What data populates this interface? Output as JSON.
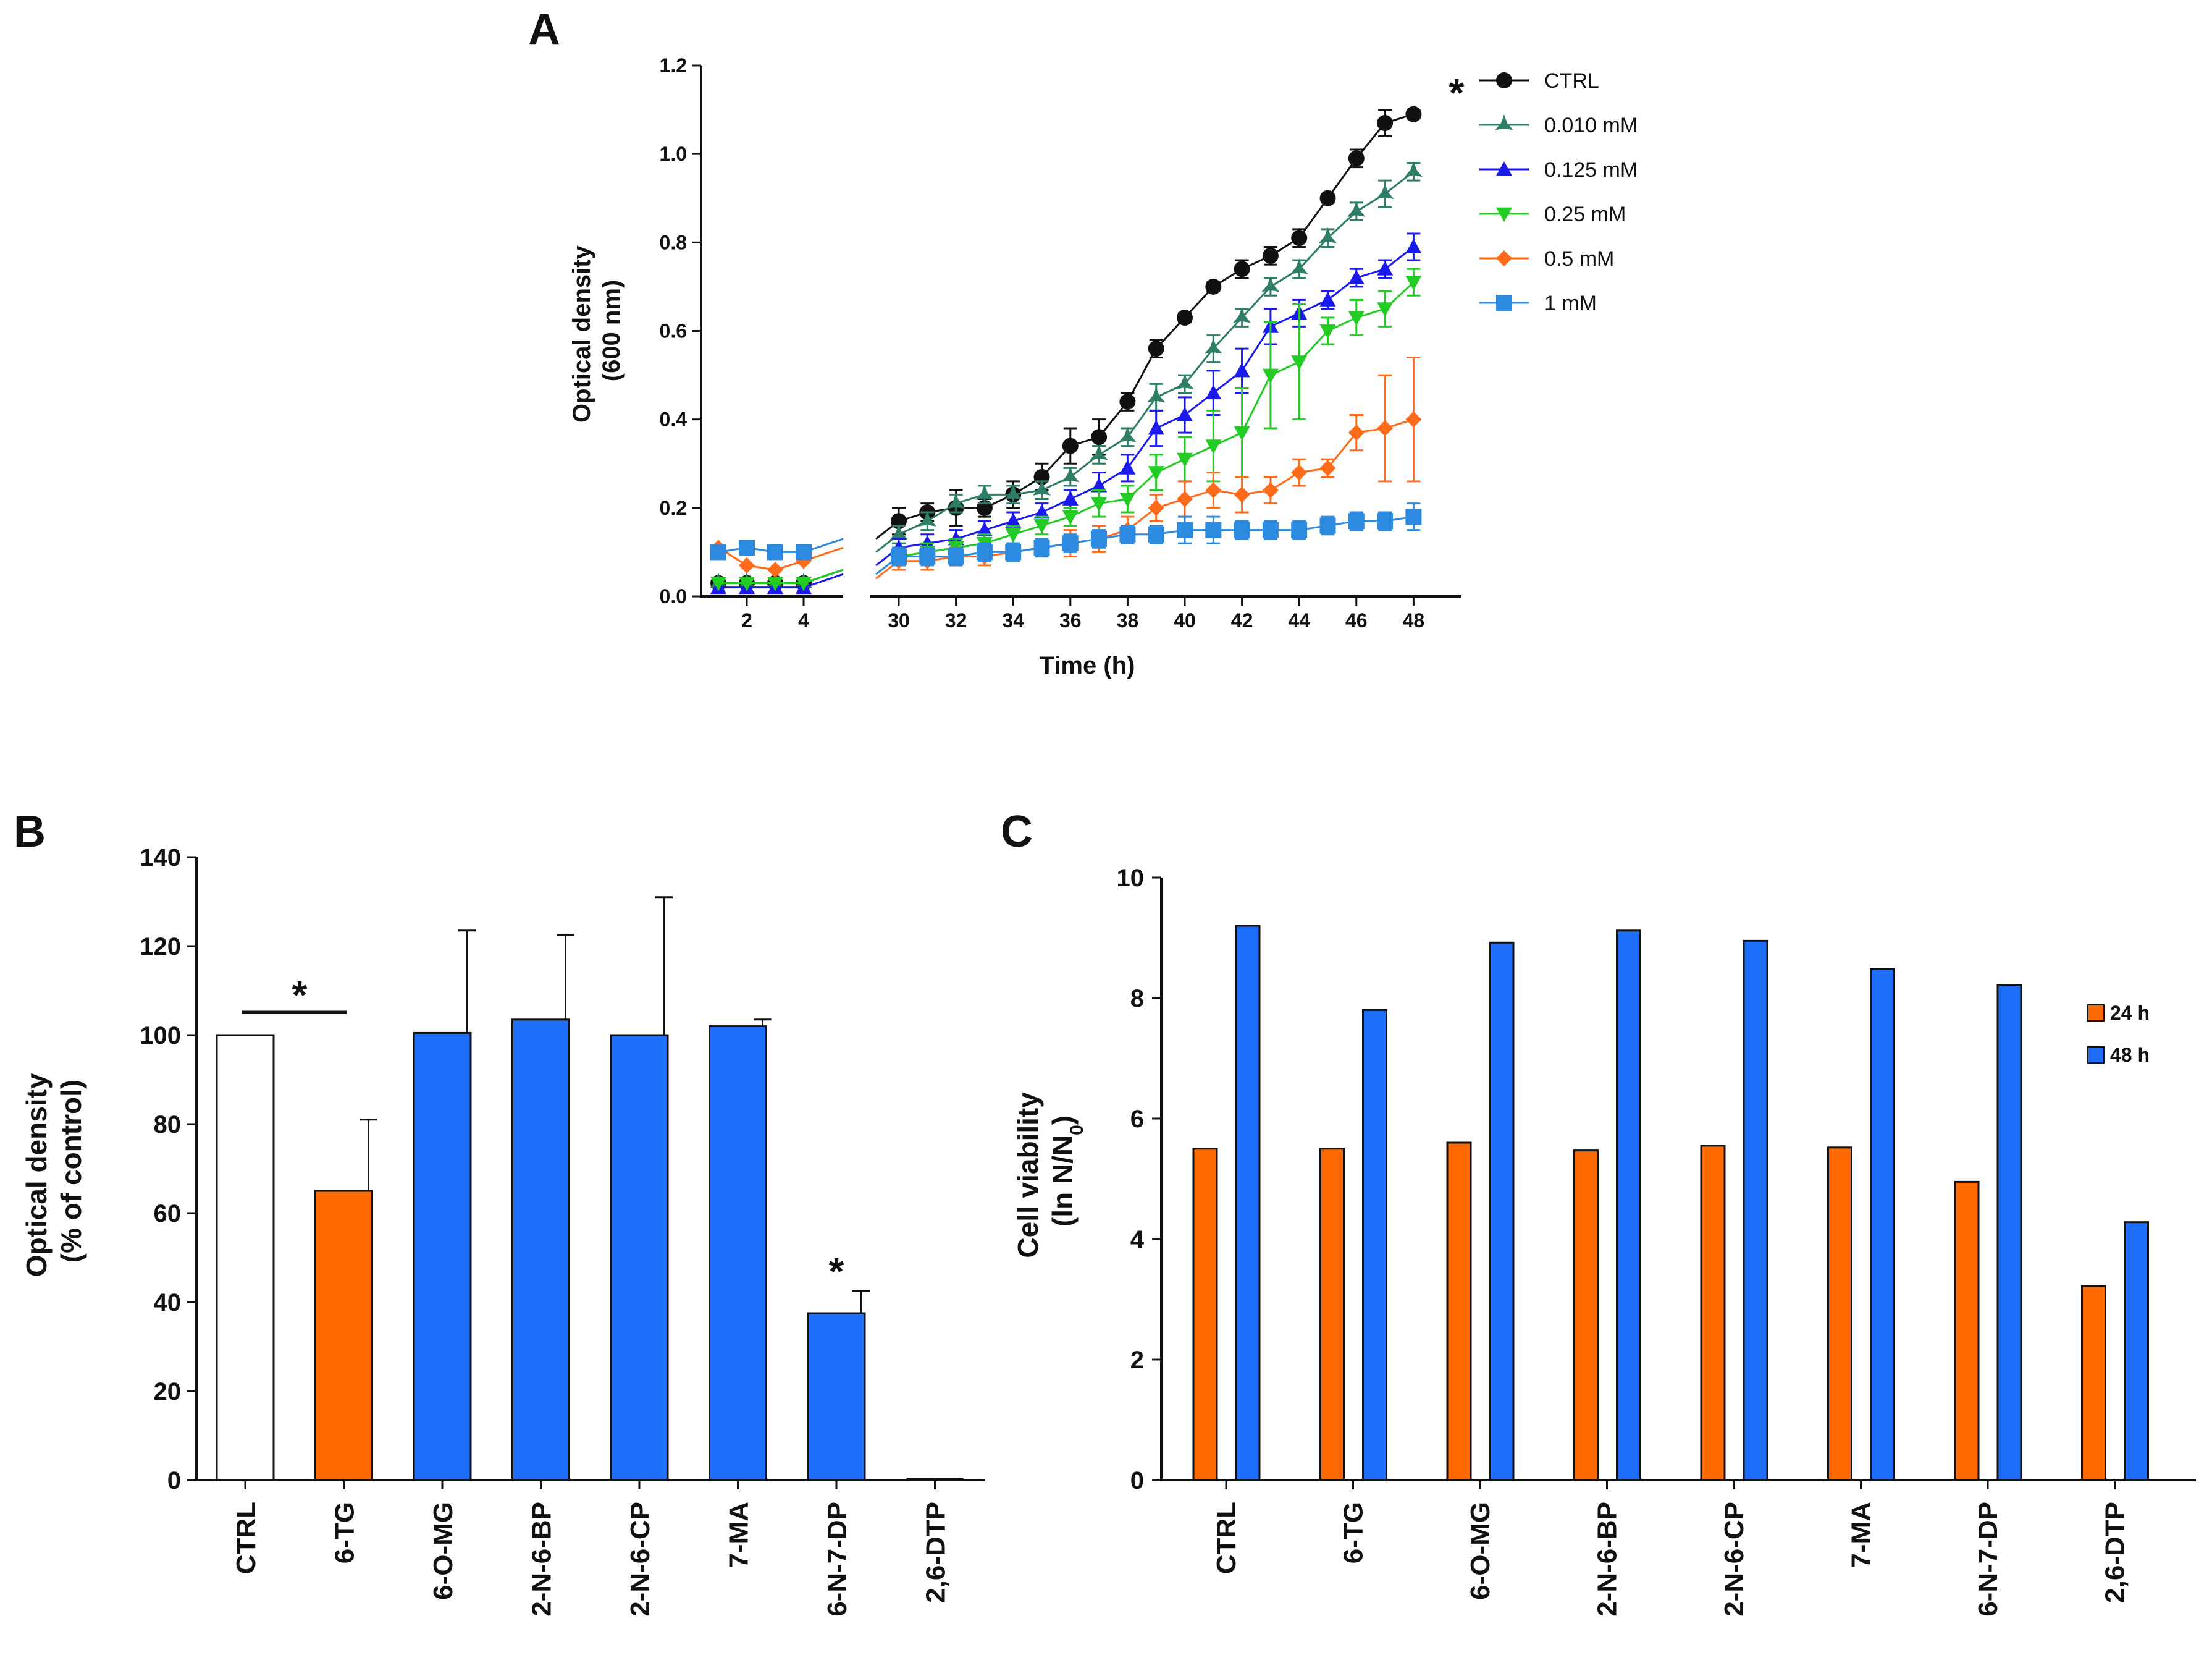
{
  "chart_data": [
    {
      "panel": "A",
      "type": "line",
      "xlabel": "Time (h)",
      "ylabel_lines": [
        "Optical density",
        "(600 nm)"
      ],
      "ylim": [
        0,
        1.2
      ],
      "yticks": [
        "0.0",
        "0.2",
        "0.4",
        "0.6",
        "0.8",
        "1.0",
        "1.2"
      ],
      "xticks_left": [
        "2",
        "4"
      ],
      "xticks_right": [
        "30",
        "32",
        "34",
        "36",
        "38",
        "40",
        "42",
        "44",
        "46",
        "48"
      ],
      "annotation": "*",
      "series": [
        {
          "name": "CTRL",
          "color": "#111111",
          "marker": "circle",
          "early": [
            0.03,
            0.03,
            0.03,
            0.03
          ],
          "late": [
            0.17,
            0.19,
            0.2,
            0.2,
            0.23,
            0.27,
            0.34,
            0.36,
            0.44,
            0.56,
            0.63,
            0.7,
            0.74,
            0.77,
            0.81,
            0.9,
            0.99,
            1.07,
            1.09
          ],
          "err": [
            0.03,
            0.02,
            0.04,
            0.02,
            0.03,
            0.03,
            0.04,
            0.04,
            0.02,
            0.02,
            0.01,
            0.01,
            0.02,
            0.02,
            0.02,
            0.01,
            0.02,
            0.03,
            0.01
          ]
        },
        {
          "name": "0.010 mM",
          "color": "#2e7d66",
          "marker": "star",
          "early": [
            0.03,
            0.03,
            0.03,
            0.03
          ],
          "late": [
            0.14,
            0.17,
            0.21,
            0.23,
            0.23,
            0.24,
            0.27,
            0.32,
            0.36,
            0.45,
            0.48,
            0.56,
            0.63,
            0.7,
            0.74,
            0.81,
            0.87,
            0.91,
            0.96
          ],
          "err": [
            0.02,
            0.02,
            0.02,
            0.02,
            0.02,
            0.02,
            0.02,
            0.02,
            0.02,
            0.03,
            0.02,
            0.03,
            0.02,
            0.02,
            0.02,
            0.02,
            0.02,
            0.03,
            0.02
          ]
        },
        {
          "name": "0.125 mM",
          "color": "#1a1aee",
          "marker": "triangle-up",
          "early": [
            0.02,
            0.02,
            0.02,
            0.02
          ],
          "late": [
            0.11,
            0.12,
            0.13,
            0.15,
            0.17,
            0.19,
            0.22,
            0.25,
            0.29,
            0.38,
            0.41,
            0.46,
            0.51,
            0.61,
            0.64,
            0.67,
            0.72,
            0.74,
            0.79
          ],
          "err": [
            0.02,
            0.02,
            0.02,
            0.02,
            0.02,
            0.02,
            0.02,
            0.03,
            0.03,
            0.04,
            0.04,
            0.05,
            0.05,
            0.04,
            0.03,
            0.02,
            0.02,
            0.02,
            0.03
          ]
        },
        {
          "name": "0.25 mM",
          "color": "#22cc22",
          "marker": "triangle-down",
          "early": [
            0.03,
            0.03,
            0.03,
            0.03
          ],
          "late": [
            0.09,
            0.1,
            0.11,
            0.12,
            0.14,
            0.16,
            0.18,
            0.21,
            0.22,
            0.28,
            0.31,
            0.34,
            0.37,
            0.5,
            0.53,
            0.6,
            0.63,
            0.65,
            0.71
          ],
          "err": [
            0.02,
            0.02,
            0.02,
            0.02,
            0.02,
            0.02,
            0.02,
            0.03,
            0.03,
            0.04,
            0.05,
            0.08,
            0.1,
            0.12,
            0.13,
            0.03,
            0.04,
            0.04,
            0.03
          ]
        },
        {
          "name": "0.5 mM",
          "color": "#ff6b1a",
          "marker": "diamond",
          "early": [
            0.11,
            0.07,
            0.06,
            0.08
          ],
          "late": [
            0.08,
            0.08,
            0.09,
            0.09,
            0.1,
            0.11,
            0.12,
            0.13,
            0.15,
            0.2,
            0.22,
            0.24,
            0.23,
            0.24,
            0.28,
            0.29,
            0.37,
            0.38,
            0.4
          ],
          "err": [
            0.02,
            0.02,
            0.02,
            0.02,
            0.02,
            0.02,
            0.03,
            0.03,
            0.03,
            0.03,
            0.04,
            0.04,
            0.04,
            0.03,
            0.03,
            0.02,
            0.04,
            0.12,
            0.14
          ]
        },
        {
          "name": "1 mM",
          "color": "#2c8be0",
          "marker": "square",
          "early": [
            0.1,
            0.11,
            0.1,
            0.1
          ],
          "late": [
            0.09,
            0.09,
            0.09,
            0.1,
            0.1,
            0.11,
            0.12,
            0.13,
            0.14,
            0.14,
            0.15,
            0.15,
            0.15,
            0.15,
            0.15,
            0.16,
            0.17,
            0.17,
            0.18
          ],
          "err": [
            0.02,
            0.02,
            0.02,
            0.02,
            0.02,
            0.02,
            0.02,
            0.02,
            0.02,
            0.02,
            0.03,
            0.03,
            0.02,
            0.02,
            0.02,
            0.02,
            0.02,
            0.02,
            0.03
          ]
        }
      ]
    },
    {
      "panel": "B",
      "type": "bar",
      "ylabel_lines": [
        "Optical density",
        "(% of control)"
      ],
      "ylim": [
        0,
        140
      ],
      "yticks": [
        "0",
        "20",
        "40",
        "60",
        "80",
        "100",
        "120",
        "140"
      ],
      "categories": [
        "CTRL",
        "6-TG",
        "6-O-MG",
        "2-N-6-BP",
        "2-N-6-CP",
        "7-MA",
        "6-N-7-DP",
        "2,6-DTP"
      ],
      "values": [
        100,
        65,
        100.5,
        103.5,
        100,
        102,
        37.5,
        0
      ],
      "errors": [
        0,
        16,
        23,
        19,
        31,
        1.5,
        5,
        0
      ],
      "colors": [
        "#ffffff",
        "#ff6a00",
        "#1f6fff",
        "#1f6fff",
        "#1f6fff",
        "#1f6fff",
        "#1f6fff",
        "#1f6fff"
      ],
      "bracket_label": "*",
      "bar_star_label": "*"
    },
    {
      "panel": "C",
      "type": "bar",
      "ylabel_lines": [
        "Cell viability",
        "(ln N/N",
        "0",
        ")"
      ],
      "ylim": [
        0,
        10
      ],
      "yticks": [
        "0",
        "2",
        "4",
        "6",
        "8",
        "10"
      ],
      "categories": [
        "CTRL",
        "6-TG",
        "6-O-MG",
        "2-N-6-BP",
        "2-N-6-CP",
        "7-MA",
        "6-N-7-DP",
        "2,6-DTP"
      ],
      "series": [
        {
          "name": "24 h",
          "color": "#ff6a00",
          "values": [
            5.5,
            5.5,
            5.6,
            5.47,
            5.55,
            5.52,
            4.95,
            3.22
          ]
        },
        {
          "name": "48 h",
          "color": "#1f6fff",
          "values": [
            9.2,
            7.8,
            8.92,
            9.12,
            8.95,
            8.48,
            8.22,
            4.28
          ]
        }
      ]
    }
  ]
}
